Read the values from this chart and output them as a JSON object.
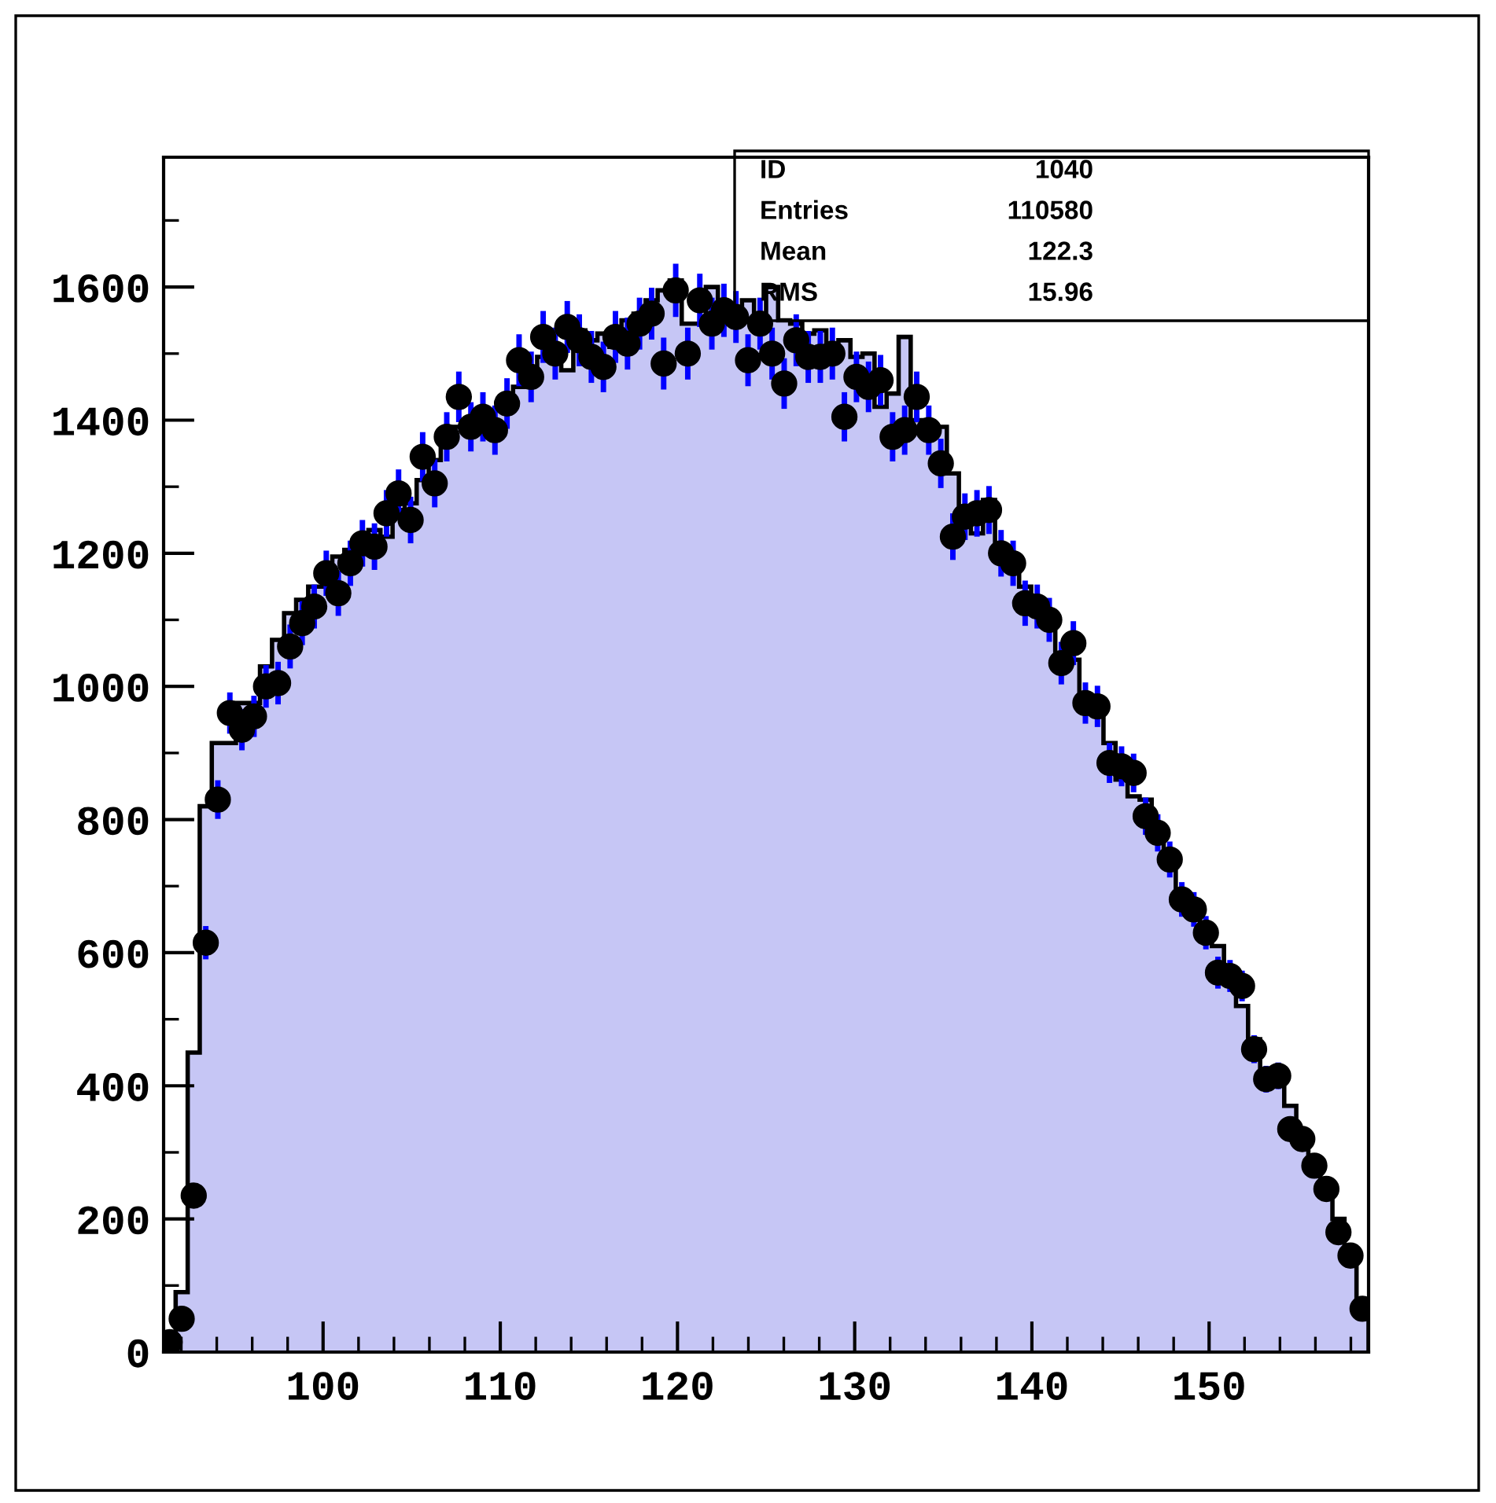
{
  "chart_data": {
    "type": "histogram",
    "bins": [
      91.0,
      91.68,
      92.36,
      93.04,
      93.72,
      94.4,
      95.08,
      95.76,
      96.44,
      97.12,
      97.8,
      98.48,
      99.16,
      99.84,
      100.52,
      101.2,
      101.88,
      102.56,
      103.24,
      103.92,
      104.6,
      105.28,
      105.96,
      106.64,
      107.32,
      108.0,
      108.68,
      109.36,
      110.04,
      110.72,
      111.4,
      112.08,
      112.76,
      113.44,
      114.12,
      114.8,
      115.48,
      116.16,
      116.84,
      117.52,
      118.2,
      118.88,
      119.56,
      120.24,
      120.92,
      121.6,
      122.28,
      122.96,
      123.64,
      124.32,
      125.0,
      125.68,
      126.36,
      127.04,
      127.72,
      128.4,
      129.08,
      129.76,
      130.44,
      131.12,
      131.8,
      132.48,
      133.16,
      133.84,
      134.52,
      135.2,
      135.88,
      136.56,
      137.24,
      137.92,
      138.6,
      139.28,
      139.96,
      140.64,
      141.32,
      142.0,
      142.68,
      143.36,
      144.04,
      144.72,
      145.4,
      146.08,
      146.76,
      147.44,
      148.12,
      148.8,
      149.48,
      150.16,
      150.84,
      151.52,
      152.2,
      152.88,
      153.56,
      154.24,
      154.92,
      155.6,
      156.28,
      156.96,
      157.64,
      158.32,
      159.0
    ],
    "series": [
      {
        "color": "#c6c6f5",
        "values": [
          20,
          90,
          450,
          820,
          915,
          915,
          975,
          975,
          1030,
          1070,
          1110,
          1130,
          1150,
          1150,
          1195,
          1205,
          1225,
          1235,
          1225,
          1265,
          1275,
          1310,
          1340,
          1370,
          1390,
          1390,
          1395,
          1415,
          1415,
          1450,
          1465,
          1495,
          1505,
          1475,
          1535,
          1520,
          1530,
          1510,
          1550,
          1560,
          1580,
          1595,
          1610,
          1545,
          1545,
          1600,
          1545,
          1560,
          1580,
          1545,
          1600,
          1550,
          1545,
          1530,
          1535,
          1495,
          1520,
          1495,
          1500,
          1420,
          1440,
          1525,
          1400,
          1380,
          1390,
          1320,
          1250,
          1230,
          1280,
          1200,
          1185,
          1150,
          1110,
          1100,
          1050,
          1040,
          985,
          960,
          915,
          860,
          835,
          830,
          770,
          730,
          680,
          660,
          620,
          610,
          560,
          520,
          470,
          420,
          400,
          370,
          330,
          290,
          250,
          200,
          145,
          60
        ]
      },
      {
        "type": "scatter",
        "color": "#000000",
        "x": [
          91.34,
          92.02,
          92.7,
          93.38,
          94.06,
          94.74,
          95.42,
          96.1,
          96.78,
          97.46,
          98.14,
          98.82,
          99.5,
          100.18,
          100.86,
          101.54,
          102.22,
          102.9,
          103.58,
          104.26,
          104.94,
          105.62,
          106.3,
          106.98,
          107.66,
          108.34,
          109.02,
          109.7,
          110.38,
          111.06,
          111.74,
          112.42,
          113.1,
          113.78,
          114.46,
          115.14,
          115.82,
          116.5,
          117.18,
          117.86,
          118.54,
          119.22,
          119.9,
          120.58,
          121.26,
          121.94,
          122.62,
          123.3,
          123.98,
          124.66,
          125.34,
          126.02,
          126.7,
          127.38,
          128.06,
          128.74,
          129.42,
          130.1,
          130.78,
          131.46,
          132.14,
          132.82,
          133.5,
          134.18,
          134.86,
          135.54,
          136.22,
          136.9,
          137.58,
          138.26,
          138.94,
          139.62,
          140.3,
          140.98,
          141.66,
          142.34,
          143.02,
          143.7,
          144.38,
          145.06,
          145.74,
          146.42,
          147.1,
          147.78,
          148.46,
          149.14,
          149.82,
          150.5,
          151.18,
          151.86,
          152.54,
          153.22,
          153.9,
          154.58,
          155.26,
          155.94,
          156.62,
          157.3,
          157.98,
          158.66
        ],
        "values": [
          15,
          50,
          235,
          615,
          830,
          960,
          935,
          955,
          1000,
          1005,
          1060,
          1095,
          1120,
          1170,
          1140,
          1185,
          1215,
          1210,
          1260,
          1290,
          1250,
          1345,
          1305,
          1375,
          1435,
          1390,
          1405,
          1385,
          1425,
          1490,
          1465,
          1525,
          1500,
          1540,
          1520,
          1495,
          1480,
          1525,
          1515,
          1545,
          1560,
          1485,
          1595,
          1500,
          1580,
          1545,
          1565,
          1555,
          1490,
          1545,
          1500,
          1455,
          1520,
          1495,
          1495,
          1500,
          1405,
          1465,
          1450,
          1460,
          1375,
          1385,
          1435,
          1385,
          1335,
          1225,
          1255,
          1260,
          1265,
          1200,
          1185,
          1125,
          1120,
          1100,
          1035,
          1065,
          975,
          970,
          885,
          880,
          870,
          805,
          780,
          740,
          680,
          665,
          630,
          570,
          565,
          550,
          455,
          410,
          415,
          335,
          320,
          280,
          245,
          180,
          145,
          65
        ],
        "errors": [
          4,
          7,
          null,
          25,
          29,
          31,
          31,
          31,
          32,
          32,
          33,
          33,
          33,
          34,
          34,
          34,
          35,
          35,
          35,
          36,
          35,
          37,
          36,
          37,
          38,
          37,
          37,
          37,
          38,
          39,
          38,
          39,
          39,
          39,
          39,
          39,
          38,
          39,
          39,
          39,
          39,
          39,
          40,
          39,
          40,
          39,
          40,
          39,
          39,
          39,
          39,
          38,
          39,
          39,
          39,
          39,
          37,
          38,
          38,
          38,
          37,
          37,
          38,
          37,
          37,
          35,
          35,
          35,
          36,
          35,
          34,
          34,
          33,
          33,
          32,
          33,
          31,
          31,
          30,
          30,
          29,
          28,
          28,
          27,
          26,
          26,
          25,
          24,
          24,
          23,
          21,
          20,
          20,
          null,
          null,
          null,
          null,
          null,
          null,
          null
        ]
      }
    ],
    "xlim": [
      91,
      159
    ],
    "ylim": [
      0,
      1795
    ],
    "xticks": [
      100,
      110,
      120,
      130,
      140,
      150
    ],
    "yticks": [
      0,
      200,
      400,
      600,
      800,
      1000,
      1200,
      1400,
      1600
    ],
    "marker": "circle",
    "grid": false,
    "legend": false,
    "annotations": [
      "ID",
      "1040",
      "Entries",
      "110580",
      "Mean",
      "122.3",
      "RMS",
      "15.96"
    ]
  }
}
